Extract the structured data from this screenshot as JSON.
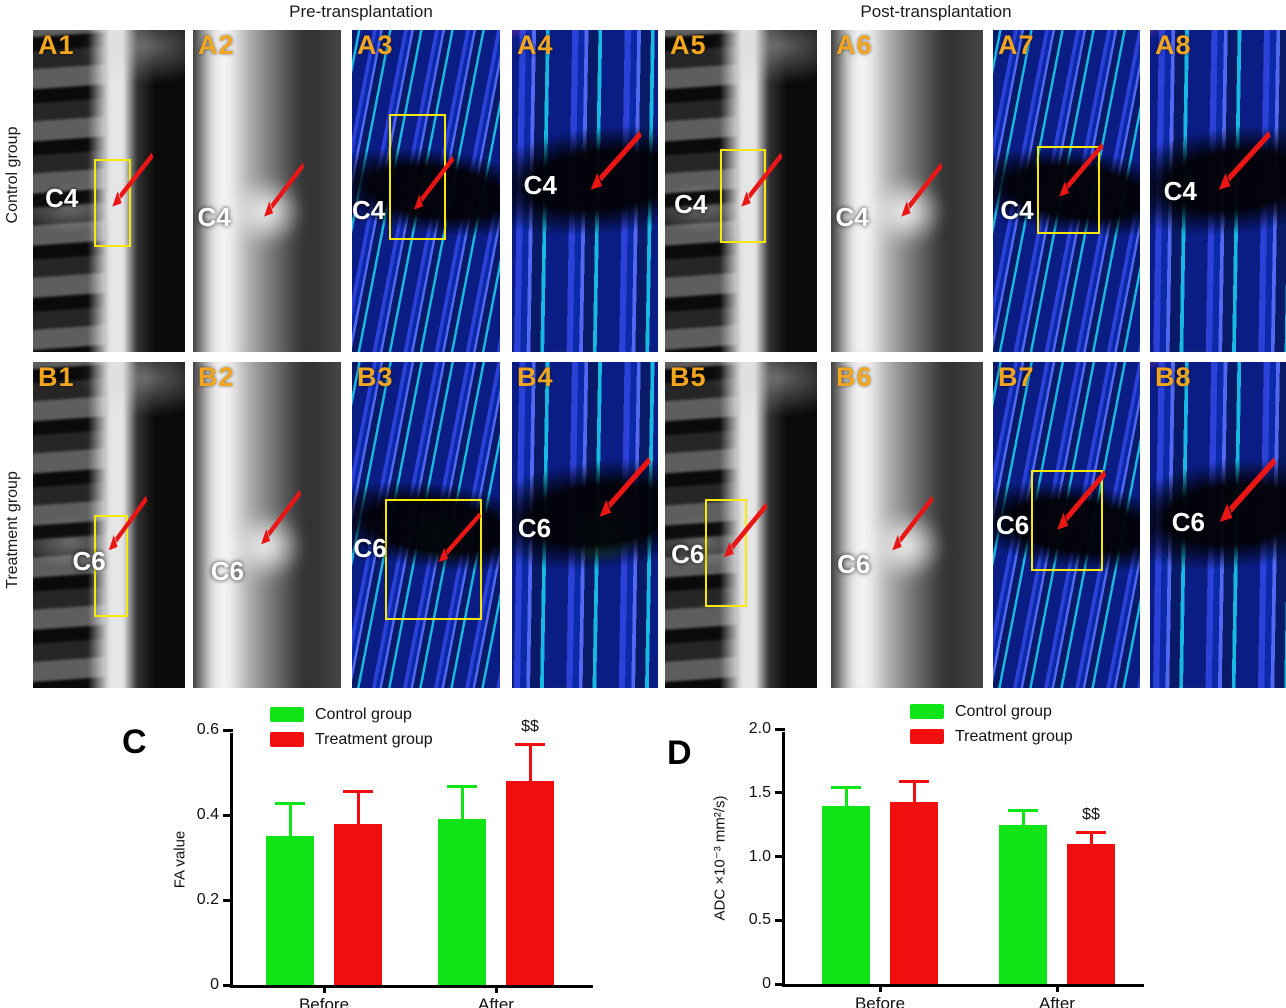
{
  "headers": {
    "pre": "Pre-transplantation",
    "post": "Post-transplantation"
  },
  "row_labels": {
    "control": "Control group",
    "treatment": "Treatment group"
  },
  "panels": [
    {
      "id": "A1",
      "vertebra": "C4"
    },
    {
      "id": "A2",
      "vertebra": "C4"
    },
    {
      "id": "A3",
      "vertebra": "C4"
    },
    {
      "id": "A4",
      "vertebra": "C4"
    },
    {
      "id": "A5",
      "vertebra": "C4"
    },
    {
      "id": "A6",
      "vertebra": "C4"
    },
    {
      "id": "A7",
      "vertebra": "C4"
    },
    {
      "id": "A8",
      "vertebra": "C4"
    },
    {
      "id": "B1",
      "vertebra": "C6"
    },
    {
      "id": "B2",
      "vertebra": "C6"
    },
    {
      "id": "B3",
      "vertebra": "C6"
    },
    {
      "id": "B4",
      "vertebra": "C6"
    },
    {
      "id": "B5",
      "vertebra": "C6"
    },
    {
      "id": "B6",
      "vertebra": "C6"
    },
    {
      "id": "B7",
      "vertebra": "C6"
    },
    {
      "id": "B8",
      "vertebra": "C6"
    }
  ],
  "colors": {
    "control": "#0FE416",
    "treatment": "#F10E0E",
    "panel_label": "#F2A51E",
    "roi_box": "#F6E70E",
    "arrow": "#EA1515"
  },
  "chart_data": [
    {
      "panel_letter": "C",
      "type": "bar",
      "ylabel": "FA value",
      "categories": [
        "Before",
        "After"
      ],
      "ylim": [
        0,
        0.6
      ],
      "yticks": [
        0,
        0.2,
        0.4,
        0.6
      ],
      "ytick_labels": [
        "0",
        "0.2",
        "0.4",
        "0.6"
      ],
      "legend_position": "top",
      "grid": false,
      "series": [
        {
          "name": "Control group",
          "color": "#0FE416",
          "values": [
            0.35,
            0.39
          ],
          "errors": [
            0.08,
            0.08
          ]
        },
        {
          "name": "Treatment group",
          "color": "#F10E0E",
          "values": [
            0.38,
            0.48
          ],
          "errors": [
            0.08,
            0.09
          ]
        }
      ],
      "annotations": [
        {
          "text": "$$",
          "category_index": 1,
          "series_index": 1
        }
      ]
    },
    {
      "panel_letter": "D",
      "type": "bar",
      "ylabel": "ADC ×10⁻³ mm²/s)",
      "categories": [
        "Before",
        "After"
      ],
      "ylim": [
        0,
        2.0
      ],
      "yticks": [
        0,
        0.5,
        1.0,
        1.5,
        2.0
      ],
      "ytick_labels": [
        "0",
        "0.5",
        "1.0",
        "1.5",
        "2.0"
      ],
      "legend_position": "top",
      "grid": false,
      "series": [
        {
          "name": "Control group",
          "color": "#0FE416",
          "values": [
            1.4,
            1.25
          ],
          "errors": [
            0.15,
            0.12
          ]
        },
        {
          "name": "Treatment group",
          "color": "#F10E0E",
          "values": [
            1.43,
            1.1
          ],
          "errors": [
            0.17,
            0.1
          ]
        }
      ],
      "annotations": [
        {
          "text": "$$",
          "category_index": 1,
          "series_index": 1
        }
      ]
    }
  ]
}
